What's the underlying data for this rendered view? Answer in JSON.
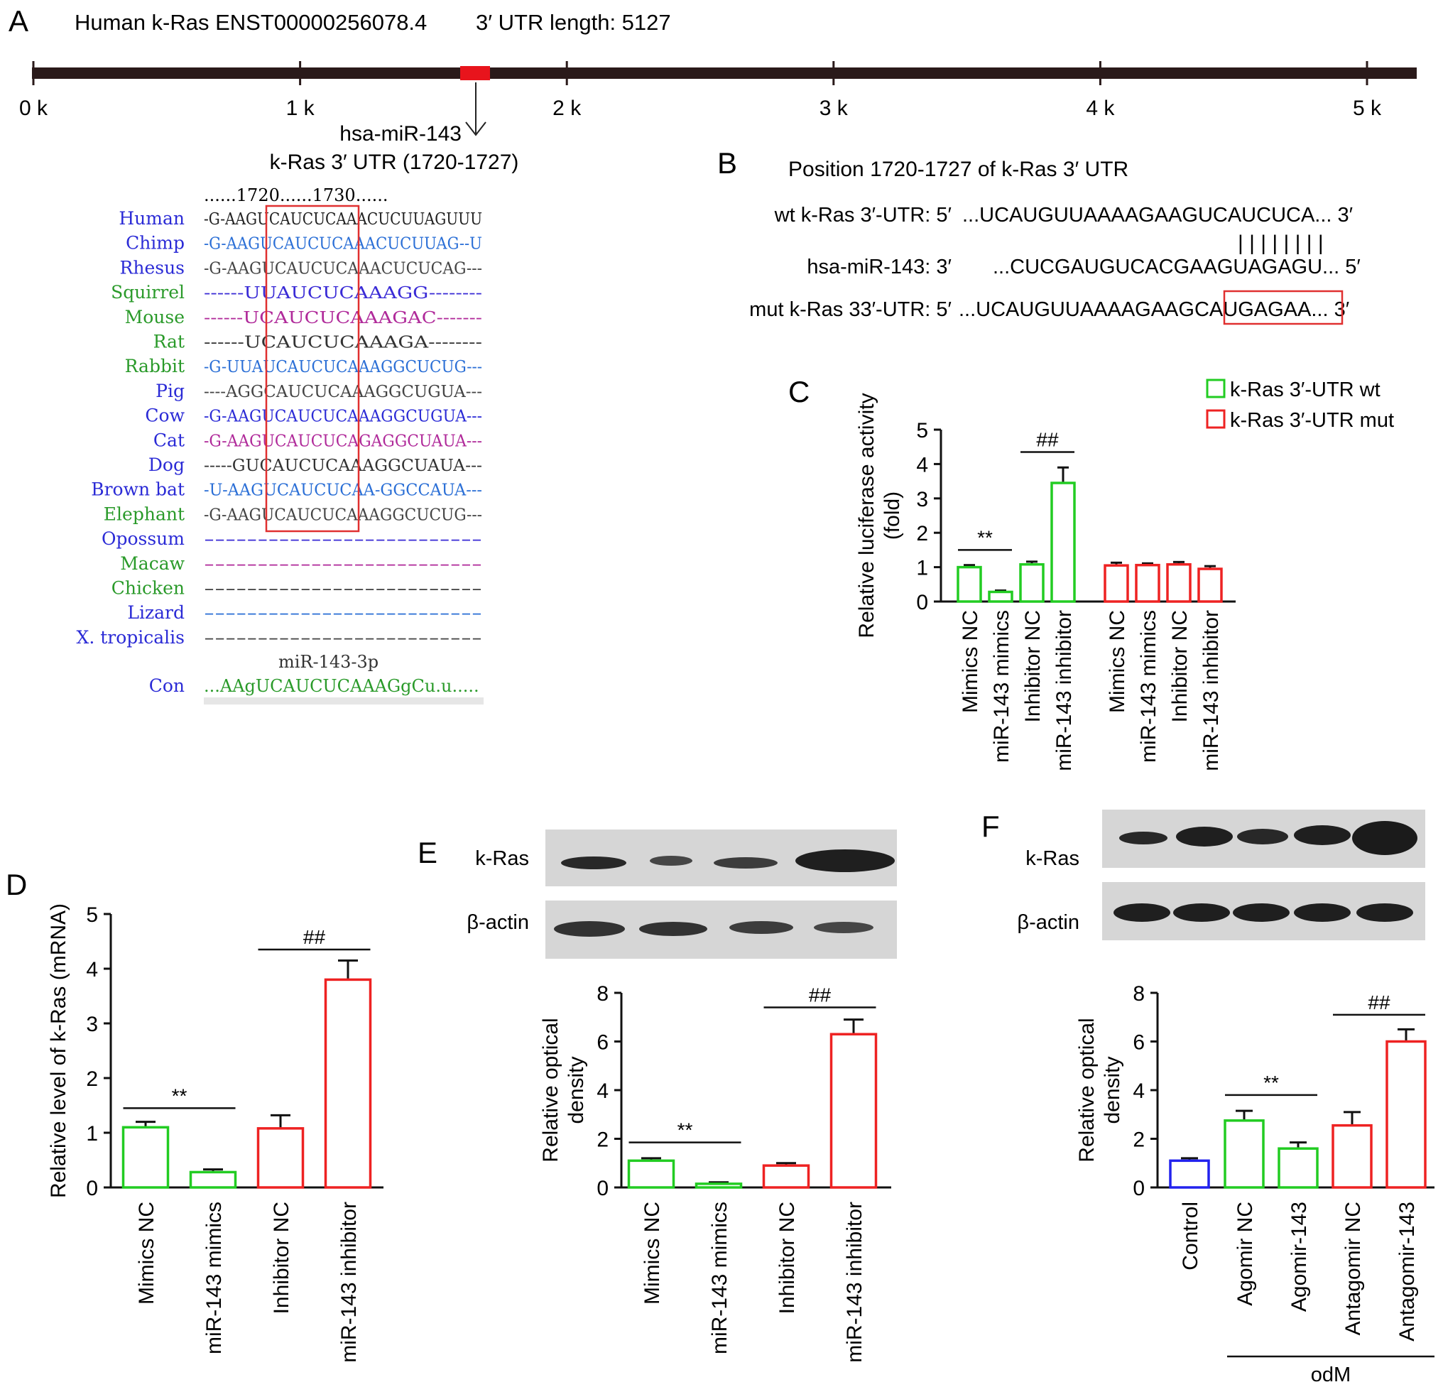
{
  "panelA": {
    "letter": "A",
    "title": "Human k-Ras ENST00000256078.4",
    "utr_length": "3′ UTR length: 5127",
    "ticks": [
      "0 k",
      "1 k",
      "2 k",
      "3 k",
      "4 k",
      "5 k"
    ],
    "marker_label1": "hsa-miR-143",
    "marker_label2": "k-Ras 3′ UTR (1720-1727)",
    "ruler": "......1720......1730......",
    "species": [
      {
        "name": "Human",
        "seq": "-G-AAGUCAUCUCAAACUCUUAGUUU",
        "color": "#2b2bd6",
        "seqcolor": "#222222"
      },
      {
        "name": "Chimp",
        "seq": "-G-AAGUCAUCUCAAACUCUUAG--U",
        "color": "#2b2bd6",
        "seqcolor": "#2b6fd6"
      },
      {
        "name": "Rhesus",
        "seq": "-G-AAGUCAUCUCAAACUCUCAG---",
        "color": "#2b2bd6",
        "seqcolor": "#444444"
      },
      {
        "name": "Squirrel",
        "seq": "------UUAUCUCAAAGG--------",
        "color": "#2a9a2a",
        "seqcolor": "#3a2bd6"
      },
      {
        "name": "Mouse",
        "seq": "------UCAUCUCAAAGAC-------",
        "color": "#2a9a2a",
        "seqcolor": "#b02a9a"
      },
      {
        "name": "Rat",
        "seq": "------UCAUCUCAAAGA--------",
        "color": "#2a9a2a",
        "seqcolor": "#333333"
      },
      {
        "name": "Rabbit",
        "seq": "-G-UUAUCAUCUCAAAGGCUCUG---",
        "color": "#2a9a2a",
        "seqcolor": "#2b6fd6"
      },
      {
        "name": "Pig",
        "seq": "----AGGCAUCUCAAAGGCUGUA---",
        "color": "#2b2bd6",
        "seqcolor": "#444444"
      },
      {
        "name": "Cow",
        "seq": "-G-AAGUCAUCUCAAAGGCUGUA---",
        "color": "#2b2bd6",
        "seqcolor": "#2b2bd6"
      },
      {
        "name": "Cat",
        "seq": "-G-AAGUCAUCUCAGAGGCUAUA---",
        "color": "#2b2bd6",
        "seqcolor": "#b02a9a"
      },
      {
        "name": "Dog",
        "seq": "-----GUCAUCUCAAAGGCUAUA---",
        "color": "#2b2bd6",
        "seqcolor": "#333333"
      },
      {
        "name": "Brown bat",
        "seq": "-U-AAGUCAUCUCAA-GGCCAUA---",
        "color": "#2b2bd6",
        "seqcolor": "#2b6fd6"
      },
      {
        "name": "Elephant",
        "seq": "-G-AAGUCAUCUCAAAGGCUCUG---",
        "color": "#2a9a2a",
        "seqcolor": "#444444"
      },
      {
        "name": "Opossum",
        "seq": "--------------------------",
        "color": "#2b2bd6",
        "seqcolor": "#3a2bd6"
      },
      {
        "name": "Macaw",
        "seq": "--------------------------",
        "color": "#2a9a2a",
        "seqcolor": "#b02a9a"
      },
      {
        "name": "Chicken",
        "seq": "--------------------------",
        "color": "#2a9a2a",
        "seqcolor": "#444444"
      },
      {
        "name": "Lizard",
        "seq": "--------------------------",
        "color": "#2b2bd6",
        "seqcolor": "#2b6fd6"
      },
      {
        "name": "X. tropicalis",
        "seq": "--------------------------",
        "color": "#2b2bd6",
        "seqcolor": "#444444"
      }
    ],
    "mir_label": "miR-143-3p",
    "con_label": "Con",
    "con_seq": "...AAgUCAUCUCAAAGgCu.u.....",
    "colors": {
      "bar": "#2a1a1a",
      "marker": "#e8141c",
      "box": "#e03030"
    }
  },
  "panelB": {
    "letter": "B",
    "title": "Position 1720-1727 of k-Ras 3′ UTR",
    "wt_label": "wt k-Ras 3′-UTR: 5′",
    "wt_seq": "...UCAUGUUAAAAGAAGUCAUCUCA... 3′",
    "pairing": "| | | | | | | |",
    "mir_label": "hsa-miR-143: 3′",
    "mir_seq": "...CUCGAUGUCACGAAGUAGAGU... 5′",
    "mut_label": "mut k-Ras 33′-UTR: 5′",
    "mut_seq_a": "...UCAUGUUAAAAGAAG",
    "mut_seq_b": "CAUGAGA",
    "mut_seq_c": "A... 3′"
  },
  "panelC": {
    "letter": "C",
    "legend": [
      "k-Ras 3′-UTR wt",
      "k-Ras 3′-UTR mut"
    ],
    "sig1": "**",
    "sig2": "##"
  },
  "panelD": {
    "letter": "D",
    "sig1": "**",
    "sig2": "##"
  },
  "panelE": {
    "letter": "E",
    "blot_labels": [
      "k-Ras",
      "β-actin"
    ],
    "sig1": "**",
    "sig2": "##"
  },
  "panelF": {
    "letter": "F",
    "blot_labels": [
      "k-Ras",
      "β-actin"
    ],
    "group_label": "odM",
    "sig1": "**",
    "sig2": "##"
  },
  "chart_data": [
    {
      "panel": "C",
      "type": "bar",
      "ylabel": "Relative luciferase activity (fold)",
      "ylim": [
        0,
        5
      ],
      "yticks": [
        0,
        1,
        2,
        3,
        4,
        5
      ],
      "categories": [
        "Mimics NC",
        "miR-143 mimics",
        "Inhibitor NC",
        "miR-143 inhibitor",
        "Mimics NC",
        "miR-143 mimics",
        "Inhibitor NC",
        "miR-143 inhibitor"
      ],
      "values": [
        1.0,
        0.28,
        1.08,
        3.45,
        1.05,
        1.06,
        1.08,
        0.95
      ],
      "errors": [
        0.06,
        0.04,
        0.08,
        0.45,
        0.08,
        0.05,
        0.07,
        0.08
      ],
      "colors": [
        "#22cc22",
        "#22cc22",
        "#22cc22",
        "#22cc22",
        "#ee2222",
        "#ee2222",
        "#ee2222",
        "#ee2222"
      ]
    },
    {
      "panel": "D",
      "type": "bar",
      "ylabel": "Relative level of k-Ras (mRNA)",
      "ylim": [
        0,
        5
      ],
      "yticks": [
        0,
        1,
        2,
        3,
        4,
        5
      ],
      "categories": [
        "Mimics NC",
        "miR-143 mimics",
        "Inhibitor NC",
        "miR-143 inhibitor"
      ],
      "values": [
        1.1,
        0.28,
        1.08,
        3.8
      ],
      "errors": [
        0.1,
        0.05,
        0.24,
        0.35
      ],
      "colors": [
        "#22cc22",
        "#22cc22",
        "#ee2222",
        "#ee2222"
      ]
    },
    {
      "panel": "E",
      "type": "bar",
      "ylabel": "Relative optical density",
      "ylim": [
        0,
        8
      ],
      "yticks": [
        0,
        2,
        4,
        6,
        8
      ],
      "categories": [
        "Mimics NC",
        "miR-143 mimics",
        "Inhibitor NC",
        "miR-143 inhibitor"
      ],
      "values": [
        1.1,
        0.15,
        0.9,
        6.3
      ],
      "errors": [
        0.1,
        0.06,
        0.1,
        0.6
      ],
      "colors": [
        "#22cc22",
        "#22cc22",
        "#ee2222",
        "#ee2222"
      ]
    },
    {
      "panel": "F",
      "type": "bar",
      "ylabel": "Relative optical density",
      "ylim": [
        0,
        8
      ],
      "yticks": [
        0,
        2,
        4,
        6,
        8
      ],
      "categories": [
        "Control",
        "Agomir NC",
        "Agomir-143",
        "Antagomir NC",
        "Antagomir-143"
      ],
      "values": [
        1.1,
        2.75,
        1.6,
        2.55,
        6.0
      ],
      "errors": [
        0.1,
        0.4,
        0.25,
        0.55,
        0.5
      ],
      "colors": [
        "#2222ee",
        "#22cc22",
        "#22cc22",
        "#ee2222",
        "#ee2222"
      ]
    }
  ]
}
